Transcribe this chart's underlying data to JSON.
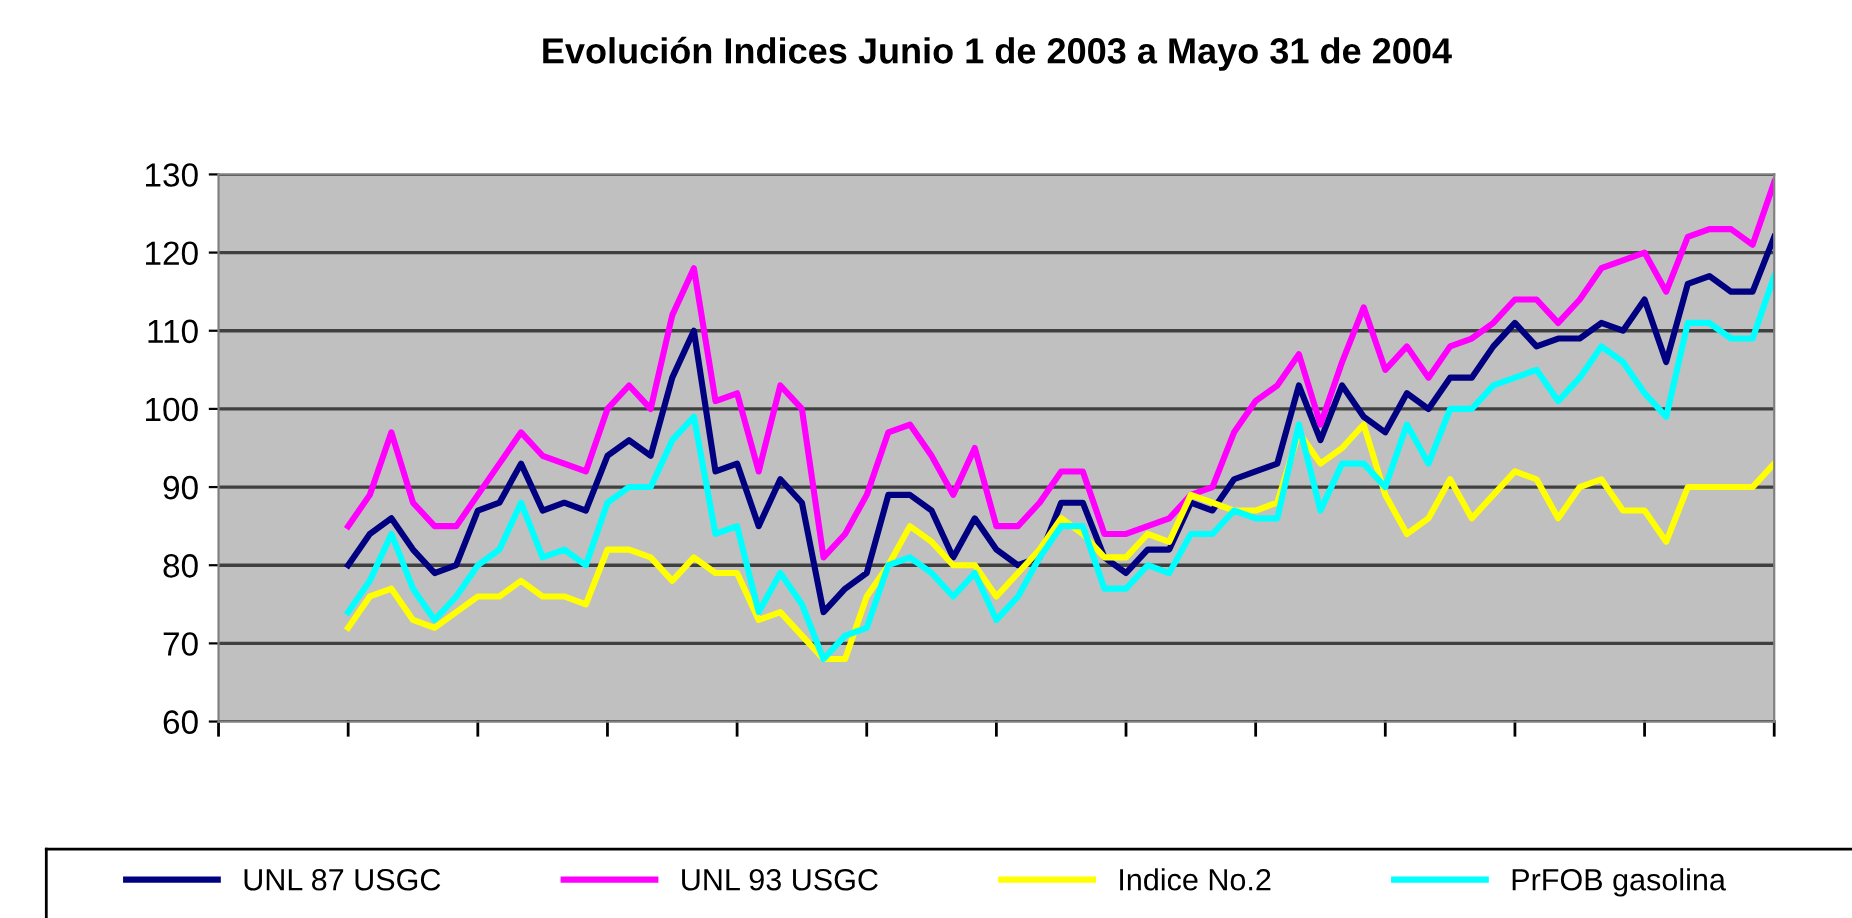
{
  "chart_data": {
    "type": "line",
    "title": "Evolución Indices Junio 1 de 2003 a Mayo 31 de 2004",
    "categories": [
      null,
      null,
      null,
      null,
      null,
      null,
      null,
      null,
      null,
      null,
      null,
      null,
      null,
      null,
      null,
      null,
      null,
      null,
      null,
      null,
      null,
      null,
      null,
      null,
      null,
      null,
      null,
      null,
      null,
      null,
      null,
      null,
      null,
      null,
      null,
      null,
      null,
      null,
      null,
      null,
      null,
      null,
      null,
      null,
      null,
      null,
      null,
      null,
      null,
      null,
      null,
      null,
      null,
      null,
      null,
      null,
      null,
      null,
      null,
      null,
      null,
      null,
      null,
      null,
      null,
      null,
      null,
      null,
      null,
      null,
      null,
      null,
      null
    ],
    "series": [
      {
        "name": "UNL 87 USGC",
        "color": "#000080",
        "values": [
          null,
          null,
          null,
          null,
          null,
          null,
          80,
          84,
          86,
          82,
          79,
          80,
          87,
          88,
          93,
          87,
          88,
          87,
          94,
          96,
          94,
          104,
          110,
          92,
          93,
          85,
          91,
          88,
          74,
          77,
          79,
          89,
          89,
          87,
          81,
          86,
          82,
          80,
          81,
          88,
          88,
          81,
          79,
          82,
          82,
          88,
          87,
          91,
          92,
          93,
          103,
          96,
          103,
          99,
          97,
          102,
          100,
          104,
          104,
          108,
          111,
          108,
          109,
          109,
          111,
          110,
          114,
          106,
          116,
          117,
          115,
          115,
          122
        ]
      },
      {
        "name": "UNL 93 USGC",
        "color": "#ff00ff",
        "values": [
          null,
          null,
          null,
          null,
          null,
          null,
          85,
          89,
          97,
          88,
          85,
          85,
          89,
          93,
          97,
          94,
          93,
          92,
          100,
          103,
          100,
          112,
          118,
          101,
          102,
          92,
          103,
          100,
          81,
          84,
          89,
          97,
          98,
          94,
          89,
          95,
          85,
          85,
          88,
          92,
          92,
          84,
          84,
          85,
          86,
          89,
          90,
          97,
          101,
          103,
          107,
          98,
          106,
          113,
          105,
          108,
          104,
          108,
          109,
          111,
          114,
          114,
          111,
          114,
          118,
          119,
          120,
          115,
          122,
          123,
          123,
          121,
          129
        ]
      },
      {
        "name": "Indice No.2",
        "color": "#ffff00",
        "values": [
          null,
          null,
          null,
          null,
          null,
          null,
          72,
          76,
          77,
          73,
          72,
          74,
          76,
          76,
          78,
          76,
          76,
          75,
          82,
          82,
          81,
          78,
          81,
          79,
          79,
          73,
          74,
          71,
          68,
          68,
          76,
          80,
          85,
          83,
          80,
          80,
          76,
          79,
          82,
          86,
          84,
          81,
          81,
          84,
          83,
          89,
          88,
          87,
          87,
          88,
          97,
          93,
          95,
          98,
          89,
          84,
          86,
          91,
          86,
          89,
          92,
          91,
          86,
          90,
          91,
          87,
          87,
          83,
          90,
          90,
          90,
          90,
          93
        ]
      },
      {
        "name": "PrFOB gasolina",
        "color": "#00ffff",
        "values": [
          null,
          null,
          null,
          null,
          null,
          null,
          74,
          78,
          84,
          77,
          73,
          76,
          80,
          82,
          88,
          81,
          82,
          80,
          88,
          90,
          90,
          96,
          99,
          84,
          85,
          74,
          79,
          75,
          68,
          71,
          72,
          80,
          81,
          79,
          76,
          79,
          73,
          76,
          81,
          85,
          85,
          77,
          77,
          80,
          79,
          84,
          84,
          87,
          86,
          86,
          98,
          87,
          93,
          93,
          90,
          98,
          93,
          100,
          100,
          103,
          104,
          105,
          101,
          104,
          108,
          106,
          102,
          99,
          111,
          111,
          109,
          109,
          117
        ]
      }
    ],
    "ylim": [
      60,
      130
    ],
    "yticks": [
      60,
      70,
      80,
      90,
      100,
      110,
      120,
      130
    ],
    "grid": "y",
    "legend": "bottom",
    "tick_labels": "y",
    "marker": "none",
    "line_style": "solid"
  }
}
